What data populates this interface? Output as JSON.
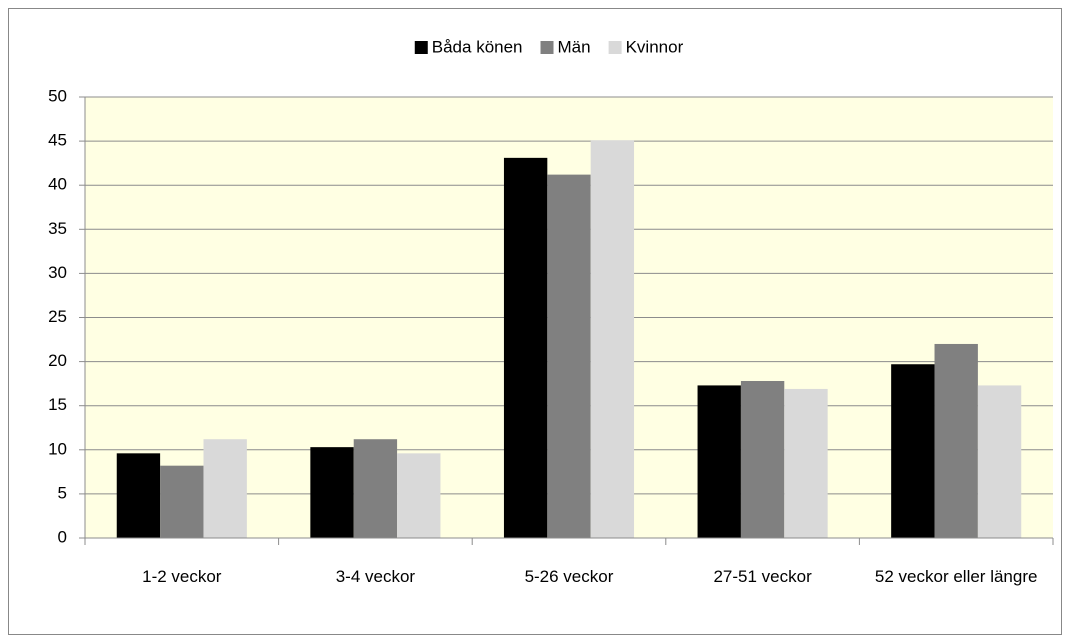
{
  "chart_data": {
    "type": "bar",
    "categories": [
      "1-2 veckor",
      "3-4 veckor",
      "5-26 veckor",
      "27-51 veckor",
      "52 veckor eller längre"
    ],
    "series": [
      {
        "name": "Båda könen",
        "color": "#000000",
        "values": [
          9.6,
          10.3,
          43.1,
          17.3,
          19.7
        ]
      },
      {
        "name": "Män",
        "color": "#808080",
        "values": [
          8.2,
          11.2,
          41.2,
          17.8,
          22.0
        ]
      },
      {
        "name": "Kvinnor",
        "color": "#d9d9d9",
        "values": [
          11.2,
          9.6,
          45.1,
          16.9,
          17.3
        ]
      }
    ],
    "ylim": [
      0,
      50
    ],
    "yticks": [
      0,
      5,
      10,
      15,
      20,
      25,
      30,
      35,
      40,
      45,
      50
    ],
    "grid": true,
    "legend": "top",
    "plot_background": "#ffffe3"
  }
}
